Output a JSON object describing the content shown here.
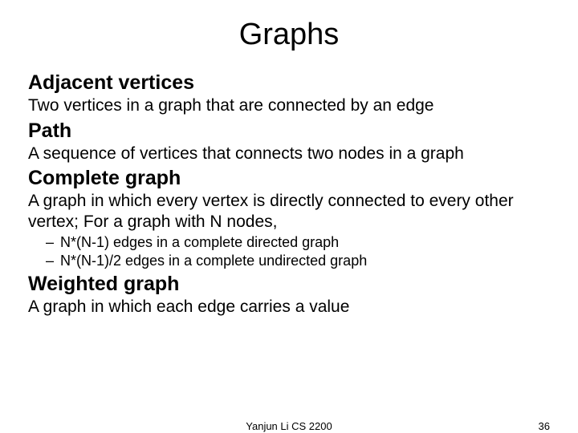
{
  "slide": {
    "title": "Graphs",
    "sections": [
      {
        "heading": "Adjacent vertices",
        "body": "Two vertices in a graph that are connected by an edge"
      },
      {
        "heading": "Path",
        "body": "A sequence of vertices that connects two nodes in a graph"
      },
      {
        "heading": "Complete graph",
        "body": "A graph in which every vertex is directly connected to every other vertex; For a graph with N nodes,",
        "bullets": [
          "N*(N-1) edges in a complete directed graph",
          "N*(N-1)/2 edges in a complete undirected graph"
        ]
      },
      {
        "heading": "Weighted graph",
        "body": "A graph in which each edge carries a value"
      }
    ],
    "footer": {
      "center": "Yanjun Li CS 2200",
      "page_number": "36"
    }
  },
  "style": {
    "background_color": "#ffffff",
    "text_color": "#000000",
    "title_fontsize": 38,
    "heading_fontsize": 25,
    "body_fontsize": 21,
    "bullet_fontsize": 18,
    "footer_fontsize": 13,
    "font_family": "Arial"
  }
}
